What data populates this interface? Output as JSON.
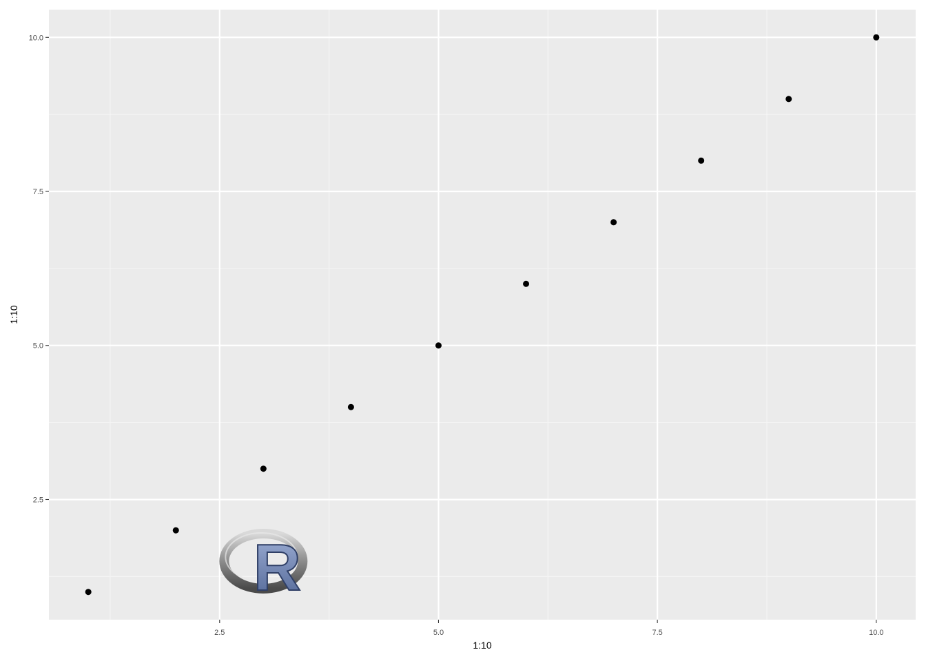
{
  "chart_data": {
    "type": "scatter",
    "title": "",
    "xlabel": "1:10",
    "ylabel": "1:10",
    "x": [
      1,
      2,
      3,
      4,
      5,
      6,
      7,
      8,
      9,
      10
    ],
    "y": [
      1,
      2,
      3,
      4,
      5,
      6,
      7,
      8,
      9,
      10
    ],
    "xlim": [
      0.55,
      10.45
    ],
    "ylim": [
      0.55,
      10.45
    ],
    "x_major_ticks": [
      2.5,
      5.0,
      7.5,
      10.0
    ],
    "x_tick_labels": [
      "2.5",
      "5.0",
      "7.5",
      "10.0"
    ],
    "y_major_ticks": [
      2.5,
      5.0,
      7.5,
      10.0
    ],
    "y_tick_labels": [
      "2.5",
      "5.0",
      "7.5",
      "10.0"
    ],
    "x_minor_ticks": [
      1.25,
      3.75,
      6.25,
      8.75
    ],
    "y_minor_ticks": [
      1.25,
      3.75,
      6.25,
      8.75
    ],
    "grid": true,
    "legend": "none",
    "logo": {
      "name": "R-logo",
      "text": "R",
      "x": 3.0,
      "y": 1.5
    },
    "colors": {
      "panel_background": "#ebebeb",
      "grid_major": "#ffffff",
      "grid_minor": "#f5f5f5",
      "point": "#000000",
      "tick_label": "#4d4d4d",
      "logo_ring": "#8c8c8c",
      "logo_letter": "#6e82b0"
    }
  }
}
